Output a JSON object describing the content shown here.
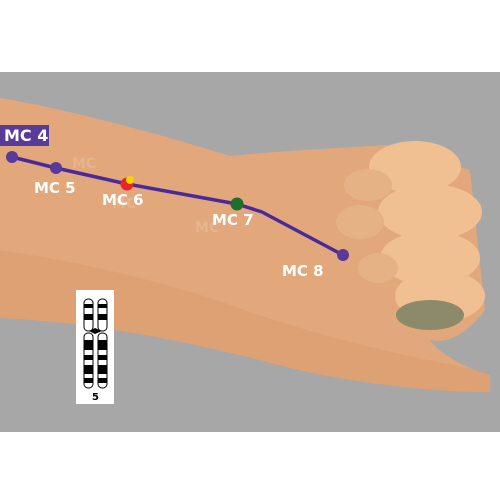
{
  "meridian": {
    "points": [
      {
        "id": "mc4",
        "label": "MC 4",
        "color": "#5a3a98"
      },
      {
        "id": "mc5",
        "label": "MC 5",
        "color": "#5a3a98"
      },
      {
        "id": "mc6",
        "label": "MC 6",
        "color": "#e8262a",
        "accent": "#f2d400"
      },
      {
        "id": "mc7",
        "label": "MC 7",
        "color": "#1e6e2e"
      },
      {
        "id": "mc8",
        "label": "MC 8",
        "color": "#5a3a98"
      }
    ],
    "line_color": "#4a2a9a"
  },
  "chromosome": {
    "number": "5"
  },
  "colors": {
    "background": "#a7a7a7",
    "skin": "#e2a77a",
    "skin_light": "#f0bf92",
    "label_box": "#5a3a98"
  }
}
